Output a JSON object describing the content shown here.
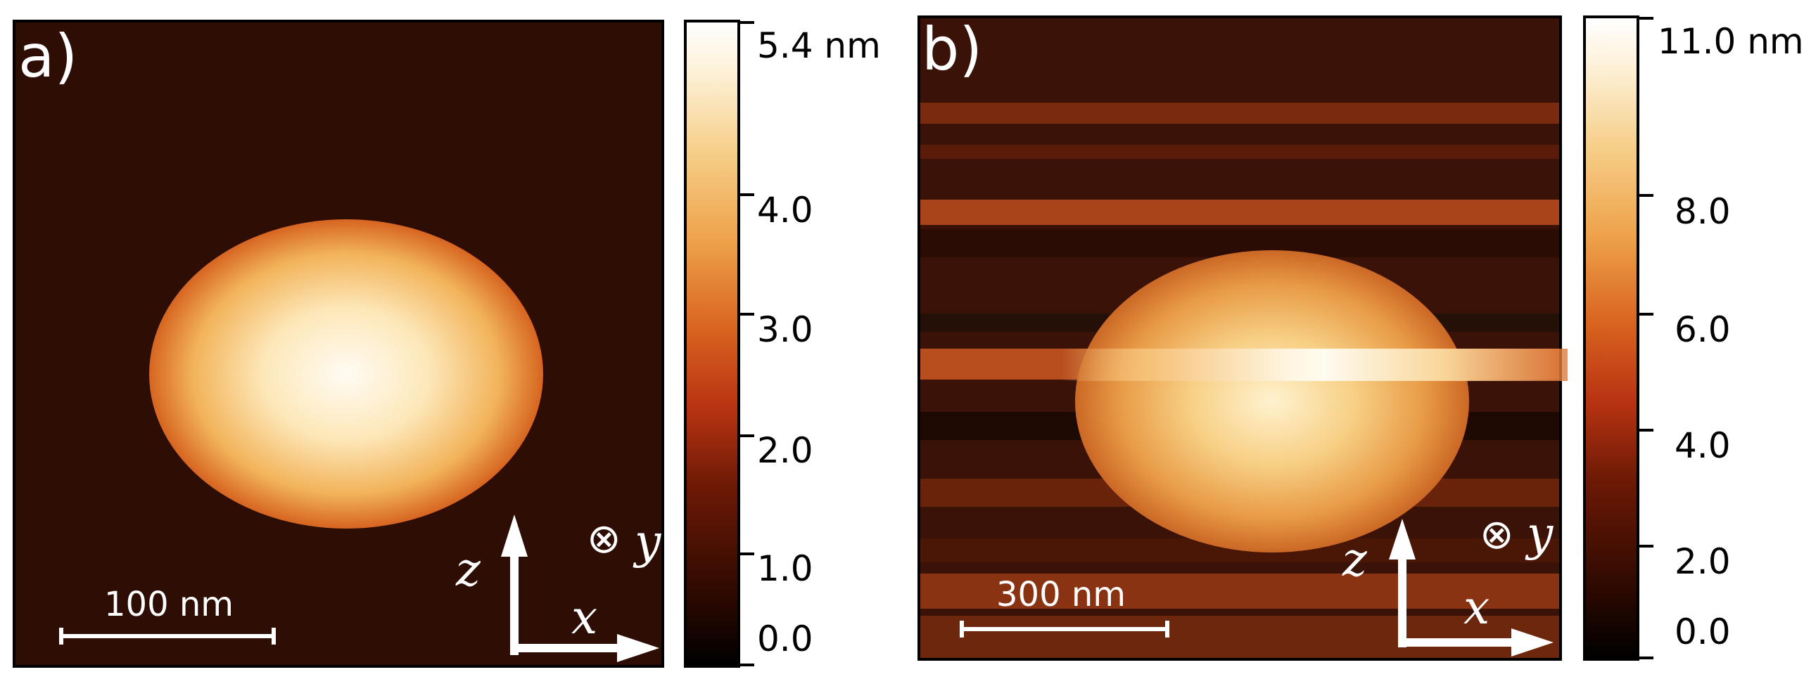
{
  "panels": [
    {
      "label": "a)",
      "scale_bar": "100 nm",
      "axes": {
        "vertical": "z",
        "horizontal": "x",
        "out_of_plane_symbol": "⊗",
        "out_of_plane": "y"
      },
      "colorbar": {
        "ticks": [
          "5.4 nm",
          "4.0",
          "3.0",
          "2.0",
          "1.0",
          "0.0"
        ]
      }
    },
    {
      "label": "b)",
      "scale_bar": "300 nm",
      "axes": {
        "vertical": "z",
        "horizontal": "x",
        "out_of_plane_symbol": "⊗",
        "out_of_plane": "y"
      },
      "colorbar": {
        "ticks": [
          "11.0 nm",
          "8.0",
          "6.0",
          "4.0",
          "2.0",
          "0.0"
        ]
      }
    }
  ]
}
